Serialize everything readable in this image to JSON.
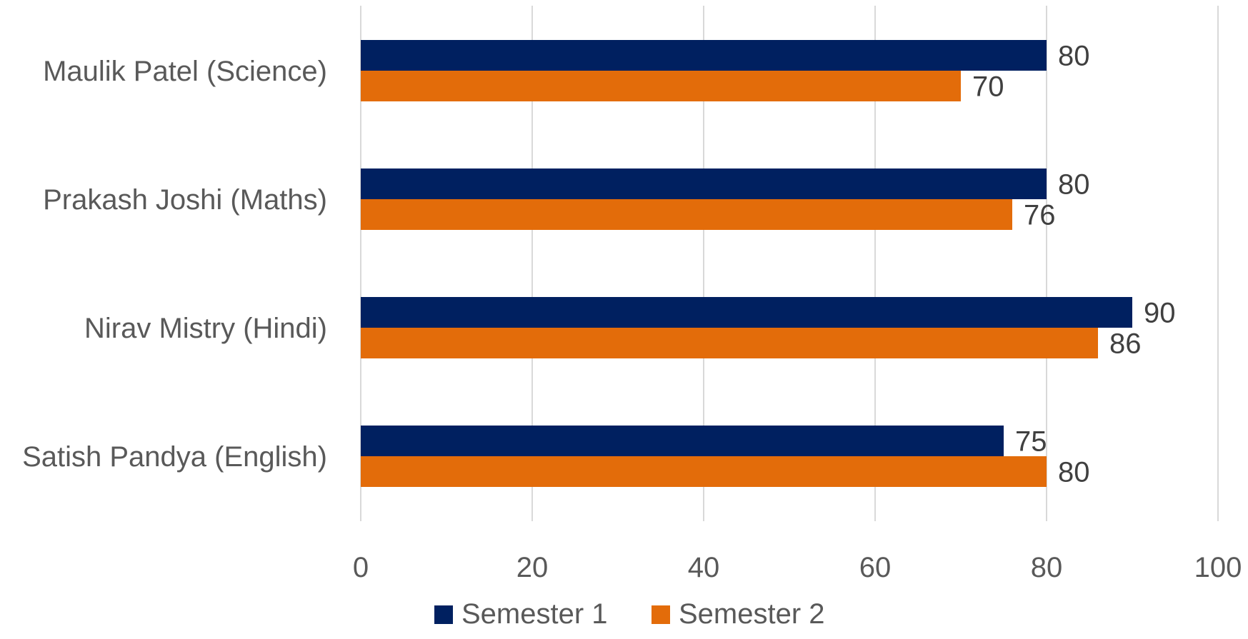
{
  "chart_data": {
    "type": "bar",
    "orientation": "horizontal",
    "categories": [
      "Maulik Patel (Science)",
      "Prakash Joshi (Maths)",
      "Nirav Mistry (Hindi)",
      "Satish Pandya (English)"
    ],
    "series": [
      {
        "name": "Semester 1",
        "color": "#002060",
        "values": [
          80,
          80,
          90,
          75
        ]
      },
      {
        "name": "Semester 2",
        "color": "#E36C0A",
        "values": [
          70,
          76,
          86,
          80
        ]
      }
    ],
    "xlim": [
      0,
      100
    ],
    "xticks": [
      0,
      20,
      40,
      60,
      80,
      100
    ],
    "grid": true,
    "data_labels": true,
    "legend_position": "bottom"
  }
}
